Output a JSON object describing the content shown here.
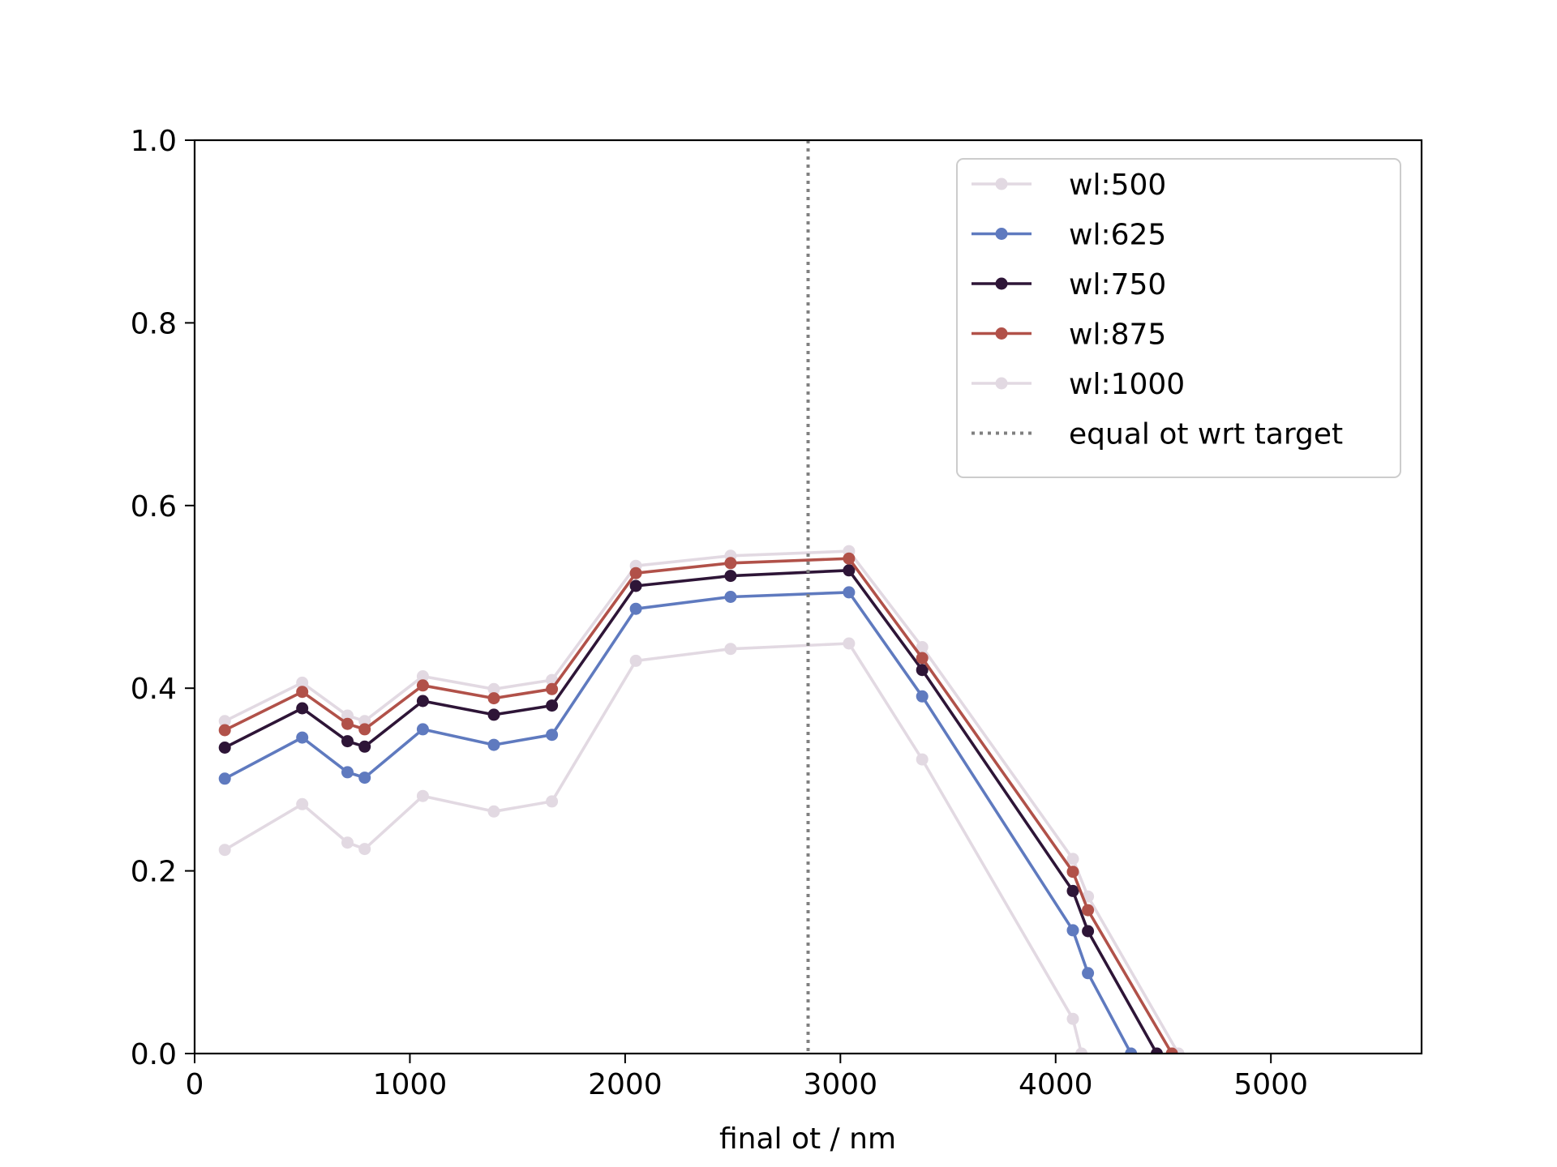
{
  "chart_data": {
    "type": "line",
    "title": "",
    "xlabel": "final ot / nm",
    "ylabel": "",
    "xlim": [
      0,
      5700
    ],
    "ylim": [
      0.0,
      1.0
    ],
    "xticks": [
      0,
      1000,
      2000,
      3000,
      4000,
      5000
    ],
    "xtick_labels": [
      "0",
      "1000",
      "2000",
      "3000",
      "4000",
      "5000"
    ],
    "yticks": [
      0.0,
      0.2,
      0.4,
      0.6,
      0.8,
      1.0
    ],
    "ytick_labels": [
      "0.0",
      "0.2",
      "0.4",
      "0.6",
      "0.8",
      "1.0"
    ],
    "grid": false,
    "legend_position": "top-right",
    "vline": {
      "x": 2850,
      "label": "equal ot wrt target",
      "color": "#808080",
      "style": "dotted"
    },
    "series": [
      {
        "name": "wl:500",
        "color": "#e2d9e2",
        "x": [
          140,
          500,
          710,
          790,
          1060,
          1390,
          1660,
          2050,
          2490,
          3040,
          3380,
          4080,
          4150,
          4570
        ],
        "y": [
          0.364,
          0.406,
          0.37,
          0.364,
          0.413,
          0.399,
          0.409,
          0.534,
          0.545,
          0.55,
          0.445,
          0.213,
          0.172,
          0.0
        ]
      },
      {
        "name": "wl:625",
        "color": "#5f7abf",
        "x": [
          140,
          500,
          710,
          790,
          1060,
          1390,
          1660,
          2050,
          2490,
          3040,
          3380,
          4080,
          4150,
          4350
        ],
        "y": [
          0.301,
          0.346,
          0.308,
          0.302,
          0.355,
          0.338,
          0.349,
          0.487,
          0.5,
          0.505,
          0.391,
          0.135,
          0.088,
          0.0
        ]
      },
      {
        "name": "wl:750",
        "color": "#2e1537",
        "x": [
          140,
          500,
          710,
          790,
          1060,
          1390,
          1660,
          2050,
          2490,
          3040,
          3380,
          4080,
          4150,
          4470
        ],
        "y": [
          0.335,
          0.378,
          0.342,
          0.336,
          0.386,
          0.371,
          0.381,
          0.512,
          0.523,
          0.529,
          0.42,
          0.178,
          0.134,
          0.0
        ]
      },
      {
        "name": "wl:875",
        "color": "#b15149",
        "x": [
          140,
          500,
          710,
          790,
          1060,
          1390,
          1660,
          2050,
          2490,
          3040,
          3380,
          4080,
          4150,
          4540
        ],
        "y": [
          0.354,
          0.396,
          0.361,
          0.355,
          0.403,
          0.389,
          0.399,
          0.526,
          0.537,
          0.542,
          0.433,
          0.199,
          0.157,
          0.0
        ]
      },
      {
        "name": "wl:1000",
        "color": "#e2d9e2",
        "x": [
          140,
          500,
          710,
          790,
          1060,
          1390,
          1660,
          2050,
          2490,
          3040,
          3380,
          4080,
          4120
        ],
        "y": [
          0.223,
          0.273,
          0.231,
          0.224,
          0.282,
          0.265,
          0.276,
          0.43,
          0.443,
          0.449,
          0.322,
          0.038,
          0.0
        ]
      }
    ]
  }
}
